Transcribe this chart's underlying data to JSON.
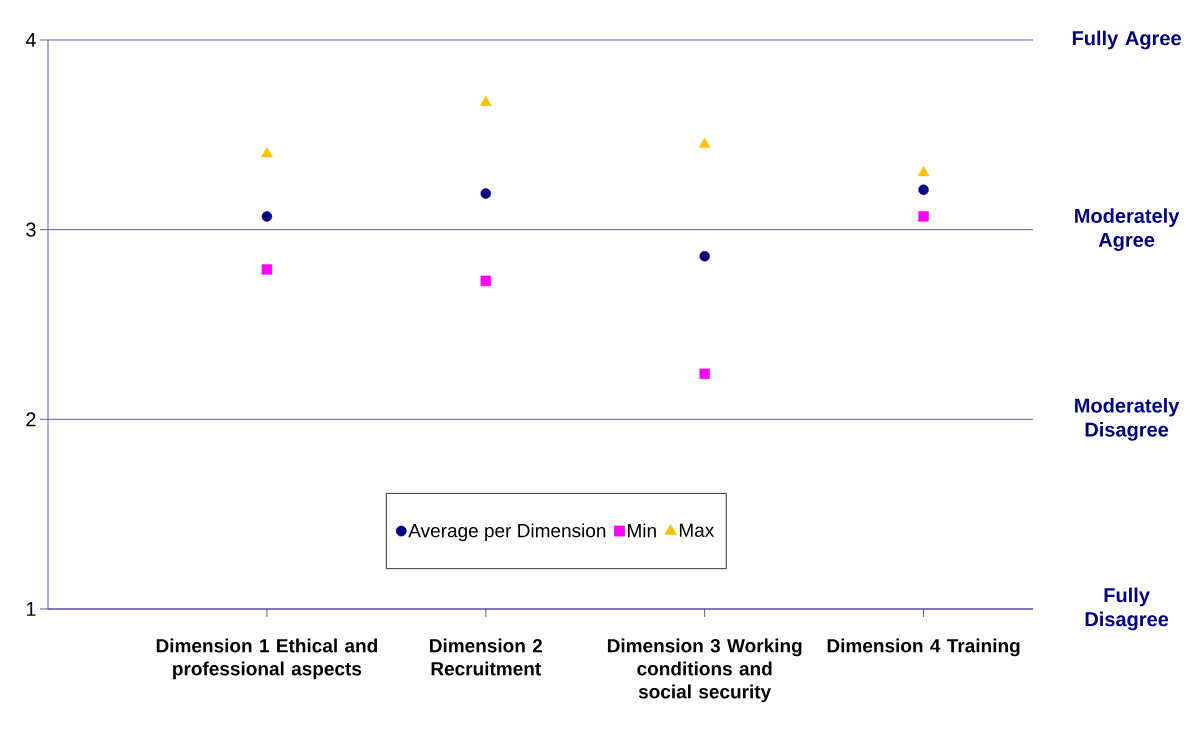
{
  "chart_data": {
    "type": "scatter",
    "categories": [
      "Dimension 1 Ethical and professional aspects",
      "Dimension 2 Recruitment",
      "Dimension 3 Working conditions and social security",
      "Dimension 4 Training"
    ],
    "series": [
      {
        "name": "Average per Dimension",
        "color": "#000080",
        "marker": "circle",
        "values": [
          3.07,
          3.19,
          2.86,
          3.21
        ]
      },
      {
        "name": "Min",
        "color": "#ff00ff",
        "marker": "square",
        "values": [
          2.79,
          2.73,
          2.24,
          3.07
        ]
      },
      {
        "name": "Max",
        "color": "#ffc000",
        "marker": "triangle",
        "values": [
          3.4,
          3.67,
          3.45,
          3.3
        ]
      }
    ],
    "ylim": [
      1,
      4
    ],
    "yticks": [
      1,
      2,
      3,
      4
    ],
    "grid": "y",
    "legend": "bottom",
    "annotations": [
      "Fully Agree",
      "Moderately Agree",
      "Moderately Disagree",
      "Fully Disagree"
    ]
  }
}
